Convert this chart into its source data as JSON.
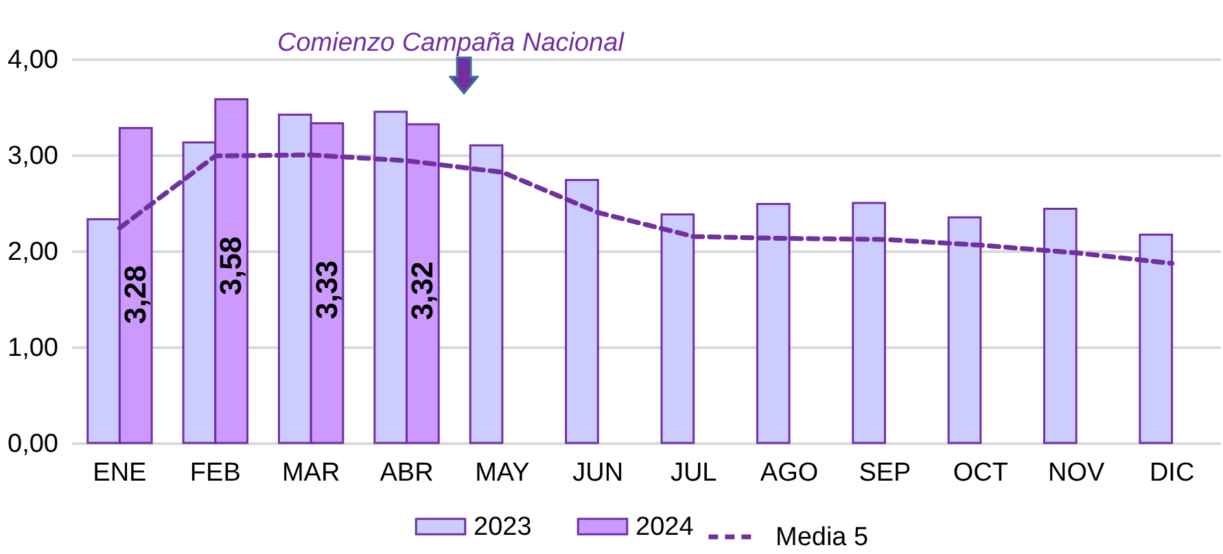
{
  "chart_data": {
    "type": "bar",
    "categories": [
      "ENE",
      "FEB",
      "MAR",
      "ABR",
      "MAY",
      "JUN",
      "JUL",
      "AGO",
      "SEP",
      "OCT",
      "NOV",
      "DIC"
    ],
    "series": [
      {
        "name": "2023",
        "color": "#ccccff",
        "values": [
          2.33,
          3.13,
          3.42,
          3.45,
          3.1,
          2.74,
          2.38,
          2.49,
          2.5,
          2.35,
          2.44,
          2.17
        ]
      },
      {
        "name": "2024",
        "color": "#cc99ff",
        "values": [
          3.28,
          3.58,
          3.33,
          3.32,
          null,
          null,
          null,
          null,
          null,
          null,
          null,
          null
        ],
        "value_labels": [
          "3,28",
          "3,58",
          "3,33",
          "3,32",
          null,
          null,
          null,
          null,
          null,
          null,
          null,
          null
        ]
      },
      {
        "name": "Media 5",
        "type": "line",
        "color": "#7030a0",
        "line_style": "dashed",
        "values": [
          2.24,
          2.99,
          3.0,
          2.94,
          2.82,
          2.4,
          2.15,
          2.13,
          2.12,
          2.06,
          1.98,
          1.87
        ]
      }
    ],
    "annotations": [
      "Comienzo Campaña Nacional"
    ],
    "ylim": [
      0,
      4
    ],
    "yticks": [
      {
        "value": 0,
        "label": "0,00"
      },
      {
        "value": 1,
        "label": "1,00"
      },
      {
        "value": 2,
        "label": "2,00"
      },
      {
        "value": 3,
        "label": "3,00"
      },
      {
        "value": 4,
        "label": "4,00"
      }
    ],
    "grid": "y",
    "legend": "bottom"
  }
}
